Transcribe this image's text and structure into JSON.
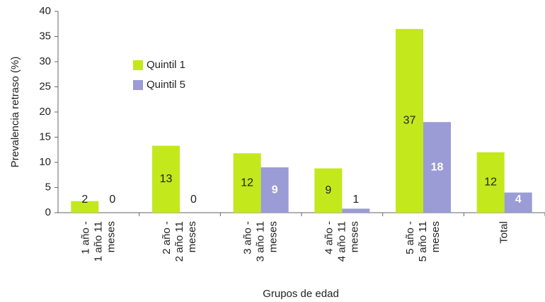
{
  "chart_data": {
    "type": "bar",
    "categories": [
      "1 año - 1 año 11 meses",
      "2 año - 2 año 11 meses",
      "3 año - 3 año 11 meses",
      "4 año - 4 año 11 meses",
      "5 año - 5 año 11 meses",
      "Total"
    ],
    "series": [
      {
        "name": "Quintil 1",
        "color": "#c3e81c",
        "values": [
          2.3,
          13.3,
          11.8,
          8.8,
          36.5,
          12
        ],
        "value_labels": [
          "2",
          "13",
          "12",
          "9",
          "37",
          "12"
        ]
      },
      {
        "name": "Quintil 5",
        "color": "#9b9bd6",
        "values": [
          0,
          0,
          9,
          0.8,
          18,
          4
        ],
        "value_labels": [
          "0",
          "0",
          "9",
          "1",
          "18",
          "4"
        ]
      }
    ],
    "ylabel": "Prevalencia retraso (%)",
    "xlabel": "Grupos de edad",
    "ylim": [
      0,
      40
    ],
    "yticks": [
      0,
      5,
      10,
      15,
      20,
      25,
      30,
      35,
      40
    ],
    "grid": false,
    "legend": "upper left"
  }
}
